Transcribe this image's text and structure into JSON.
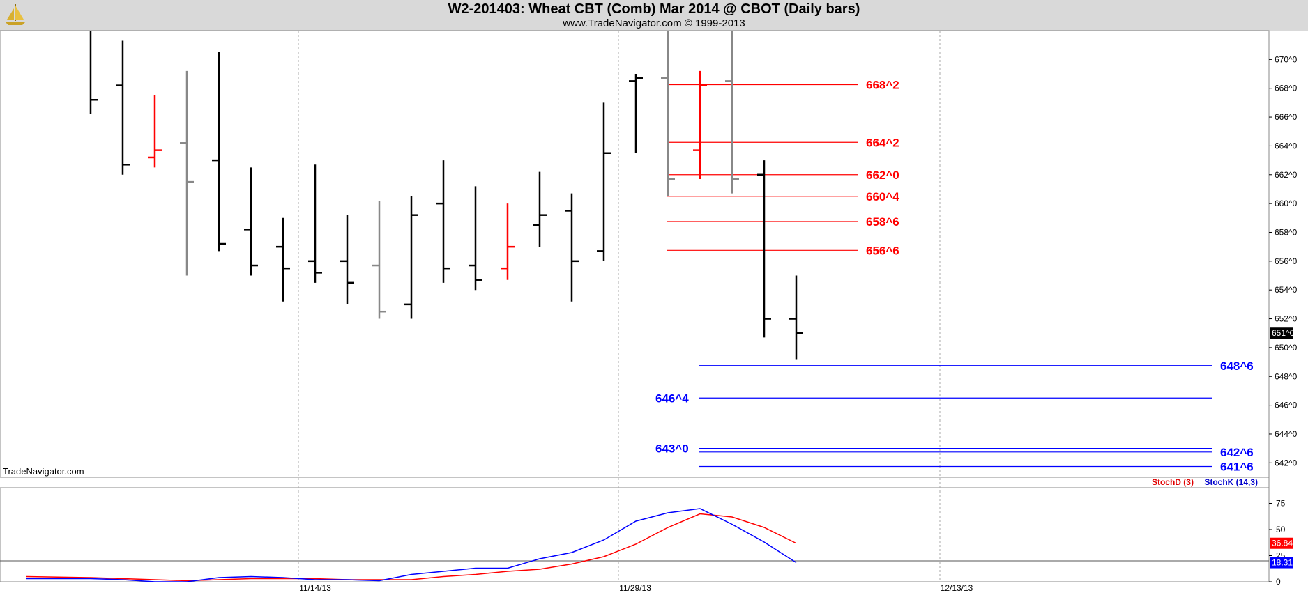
{
  "header": {
    "title": "W2-201403:  Wheat CBT (Comb) Mar 2014 @ CBOT  (Daily bars)",
    "subtitle": "www.TradeNavigator.com © 1999-2013",
    "watermark": "TradeNavigator.com"
  },
  "indicator": {
    "stoch_d_label": "StochD (3)",
    "stoch_k_label": "StochK (14,3)"
  },
  "colors": {
    "up": "#000000",
    "down": "#000000",
    "red": "#ff0000",
    "gray": "#888888",
    "blue": "#0000ff",
    "green": "#00cc00"
  },
  "chart_data": [
    {
      "type": "ohlc",
      "title": "W2-201403:  Wheat CBT (Comb) Mar 2014 @ CBOT  (Daily bars)",
      "price_format": "eighths (e.g. 668^2 = 668 2/8)",
      "ylim": [
        641.0,
        672.0
      ],
      "y_ticks": [
        "670^0",
        "668^0",
        "666^0",
        "664^0",
        "662^0",
        "660^0",
        "658^0",
        "656^0",
        "654^0",
        "652^0",
        "650^0",
        "648^0",
        "646^0",
        "644^0",
        "642^0"
      ],
      "y_tick_values": [
        670,
        668,
        666,
        664,
        662,
        660,
        658,
        656,
        654,
        652,
        650,
        648,
        646,
        644,
        642
      ],
      "x_ticks": [
        "11/14/13",
        "11/29/13",
        "12/13/13"
      ],
      "last_price_label": "651^0",
      "grid": "vertical dotted at date ticks",
      "bars": [
        {
          "bar": 1,
          "h": 672.5,
          "l": 666.2,
          "c": 667.2,
          "color": "black"
        },
        {
          "bar": 2,
          "h": 671.3,
          "o": 668.2,
          "l": 662.0,
          "c": 662.7,
          "color": "black"
        },
        {
          "bar": 3,
          "h": 667.5,
          "o": 663.2,
          "l": 662.5,
          "c": 663.7,
          "color": "red"
        },
        {
          "bar": 4,
          "h": 669.2,
          "o": 664.2,
          "l": 655.0,
          "c": 661.5,
          "color": "gray"
        },
        {
          "bar": 5,
          "h": 670.5,
          "o": 663.0,
          "l": 656.7,
          "c": 657.2,
          "color": "black"
        },
        {
          "bar": 6,
          "h": 662.5,
          "o": 658.2,
          "l": 655.0,
          "c": 655.7,
          "color": "black"
        },
        {
          "bar": 7,
          "h": 659.0,
          "o": 657.0,
          "l": 653.2,
          "c": 655.5,
          "color": "black"
        },
        {
          "bar": 8,
          "h": 662.7,
          "o": 656.0,
          "l": 654.5,
          "c": 655.2,
          "color": "black"
        },
        {
          "bar": 9,
          "h": 659.2,
          "o": 656.0,
          "l": 653.0,
          "c": 654.5,
          "color": "black"
        },
        {
          "bar": 10,
          "h": 660.2,
          "o": 655.7,
          "l": 652.0,
          "c": 652.5,
          "color": "gray"
        },
        {
          "bar": 11,
          "h": 660.5,
          "o": 653.0,
          "l": 652.0,
          "c": 659.2,
          "color": "black"
        },
        {
          "bar": 12,
          "h": 663.0,
          "o": 660.0,
          "l": 654.5,
          "c": 655.5,
          "color": "black"
        },
        {
          "bar": 13,
          "h": 661.2,
          "o": 655.7,
          "l": 654.0,
          "c": 654.7,
          "color": "black"
        },
        {
          "bar": 14,
          "h": 660.0,
          "o": 655.5,
          "l": 654.7,
          "c": 657.0,
          "color": "red"
        },
        {
          "bar": 15,
          "h": 662.2,
          "o": 658.5,
          "l": 657.0,
          "c": 659.2,
          "color": "black"
        },
        {
          "bar": 16,
          "h": 660.7,
          "o": 659.5,
          "l": 653.2,
          "c": 656.0,
          "color": "black"
        },
        {
          "bar": 17,
          "h": 667.0,
          "o": 656.7,
          "l": 656.0,
          "c": 663.5,
          "color": "black"
        },
        {
          "bar": 18,
          "h": 669.0,
          "o": 668.5,
          "l": 663.5,
          "c": 668.7,
          "color": "black"
        },
        {
          "bar": 19,
          "h": 672.5,
          "o": 668.7,
          "l": 660.5,
          "c": 661.7,
          "color": "gray"
        },
        {
          "bar": 20,
          "h": 669.2,
          "o": 663.7,
          "l": 661.7,
          "c": 668.2,
          "color": "red"
        },
        {
          "bar": 21,
          "h": 672.5,
          "o": 668.5,
          "l": 660.7,
          "c": 661.7,
          "color": "gray"
        },
        {
          "bar": 22,
          "h": 663.0,
          "o": 662.0,
          "l": 650.7,
          "c": 652.0,
          "color": "black"
        },
        {
          "bar": 23,
          "h": 655.0,
          "o": 652.0,
          "l": 649.2,
          "c": 651.0,
          "color": "black"
        }
      ],
      "resistance_levels": [
        {
          "label": "668^2",
          "value": 668.25
        },
        {
          "label": "664^2",
          "value": 664.25
        },
        {
          "label": "662^0",
          "value": 662.0
        },
        {
          "label": "660^4",
          "value": 660.5
        },
        {
          "label": "658^6",
          "value": 658.75
        },
        {
          "label": "656^6",
          "value": 656.75
        }
      ],
      "support_levels": [
        {
          "label": "648^6",
          "value": 648.75,
          "label_side": "right"
        },
        {
          "label": "646^4",
          "value": 646.5,
          "label_side": "left"
        },
        {
          "label": "643^0",
          "value": 643.0,
          "label_side": "left"
        },
        {
          "label": "642^6",
          "value": 642.75,
          "label_side": "right"
        },
        {
          "label": "641^6",
          "value": 641.75,
          "label_side": "right"
        }
      ]
    },
    {
      "type": "line",
      "series": [
        {
          "name": "StochD (3)",
          "color": "#ff0000",
          "values": [
            5,
            4,
            3,
            2,
            1,
            2,
            3,
            3,
            3,
            2,
            2,
            2,
            5,
            7,
            10,
            12,
            17,
            24,
            36,
            52,
            65,
            62,
            52,
            36.84
          ]
        },
        {
          "name": "StochK (14,3)",
          "color": "#0000ff",
          "values": [
            3,
            3,
            2,
            0,
            0,
            4,
            5,
            4,
            2,
            2,
            1,
            7,
            10,
            13,
            13,
            22,
            28,
            40,
            58,
            66,
            70,
            55,
            38,
            18.31
          ]
        }
      ],
      "ylim": [
        0,
        90
      ],
      "y_ticks": [
        0,
        25,
        50,
        75
      ],
      "last_values": {
        "StochD (3)": "36.84",
        "StochK (14,3)": "18.31"
      },
      "reference_line": 20
    }
  ]
}
